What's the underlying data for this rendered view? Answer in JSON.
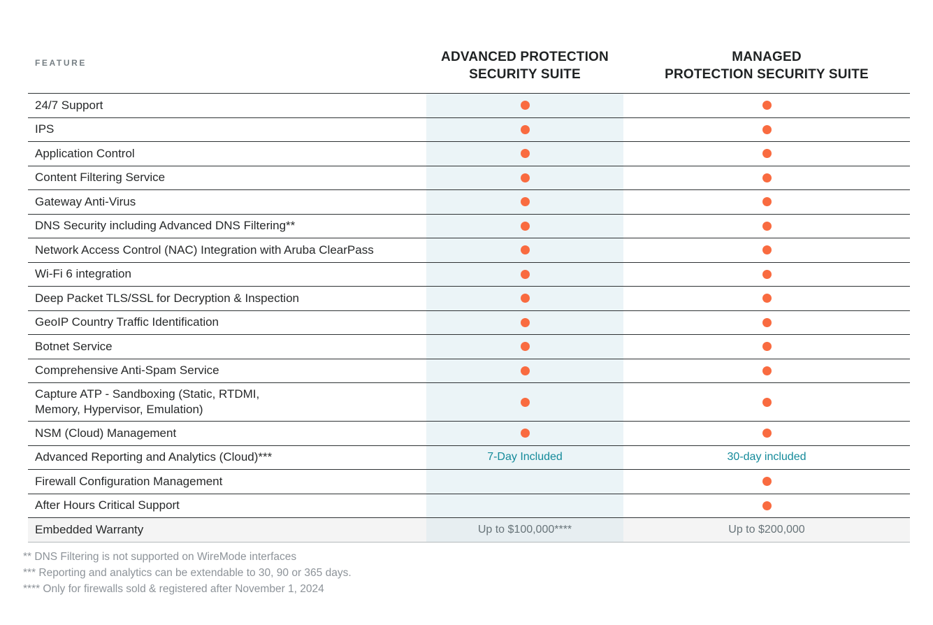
{
  "table": {
    "feature_header": "FEATURE",
    "columns": [
      {
        "title": "ADVANCED PROTECTION\nSECURITY SUITE",
        "highlighted": true
      },
      {
        "title": "MANAGED\nPROTECTION SECURITY SUITE",
        "highlighted": false
      }
    ],
    "rows": [
      {
        "feature": "24/7 Support",
        "advanced": "dot",
        "managed": "dot"
      },
      {
        "feature": "IPS",
        "advanced": "dot",
        "managed": "dot"
      },
      {
        "feature": "Application Control",
        "advanced": "dot",
        "managed": "dot"
      },
      {
        "feature": "Content Filtering Service",
        "advanced": "dot",
        "managed": "dot"
      },
      {
        "feature": "Gateway Anti-Virus",
        "advanced": "dot",
        "managed": "dot"
      },
      {
        "feature": "DNS Security including Advanced DNS Filtering**",
        "advanced": "dot",
        "managed": "dot"
      },
      {
        "feature": "Network Access Control (NAC) Integration with Aruba ClearPass",
        "advanced": "dot",
        "managed": "dot"
      },
      {
        "feature": "Wi-Fi 6 integration",
        "advanced": "dot",
        "managed": "dot"
      },
      {
        "feature": "Deep Packet TLS/SSL for Decryption & Inspection",
        "advanced": "dot",
        "managed": "dot"
      },
      {
        "feature": "GeoIP Country Traffic Identification",
        "advanced": "dot",
        "managed": "dot"
      },
      {
        "feature": "Botnet Service",
        "advanced": "dot",
        "managed": "dot"
      },
      {
        "feature": "Comprehensive Anti-Spam Service",
        "advanced": "dot",
        "managed": "dot"
      },
      {
        "feature": "Capture ATP -  Sandboxing (Static, RTDMI,\nMemory, Hypervisor, Emulation)",
        "advanced": "dot",
        "managed": "dot"
      },
      {
        "feature": "NSM (Cloud) Management",
        "advanced": "dot",
        "managed": "dot"
      },
      {
        "feature": "Advanced Reporting and Analytics (Cloud)***",
        "advanced": "7-Day Included",
        "managed": "30-day included",
        "value_style": "teal"
      },
      {
        "feature": "Firewall Configuration Management",
        "advanced": "",
        "managed": "dot"
      },
      {
        "feature": "After Hours Critical Support",
        "advanced": "",
        "managed": "dot"
      },
      {
        "feature": "Embedded Warranty",
        "advanced": "Up to $100,000****",
        "managed": "Up to $200,000",
        "value_style": "gray",
        "shaded": true
      }
    ]
  },
  "footnotes": [
    "** DNS Filtering is not supported on WireMode interfaces",
    "*** Reporting and analytics can be extendable to 30, 90 or 365 days.",
    "**** Only for firewalls sold & registered after November 1, 2024"
  ],
  "colors": {
    "included_dot": "#F96B40",
    "advanced_column_highlight": "#EBF4F7",
    "teal_value_text": "#148A9A",
    "shaded_row_background": "#F4F4F4"
  }
}
